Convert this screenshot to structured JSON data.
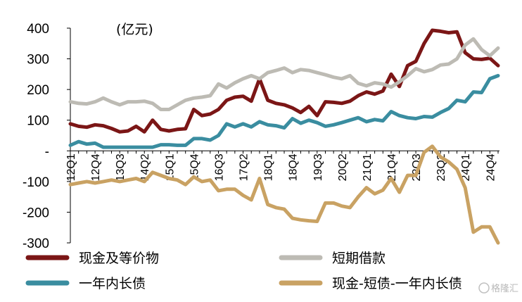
{
  "chart_data": {
    "type": "line",
    "unit_label": "(亿元)",
    "ylim": [
      -300,
      400
    ],
    "y_ticks": [
      {
        "value": 400,
        "label": "400"
      },
      {
        "value": 300,
        "label": "300"
      },
      {
        "value": 200,
        "label": "200"
      },
      {
        "value": 100,
        "label": "100"
      },
      {
        "value": 0,
        "label": "-"
      },
      {
        "value": -100,
        "label": "-100"
      },
      {
        "value": -200,
        "label": "-200"
      },
      {
        "value": -300,
        "label": "-300"
      }
    ],
    "grid": false,
    "legend_position": "bottom",
    "x": [
      "12Q1",
      "12Q2",
      "12Q3",
      "12Q4",
      "13Q1",
      "13Q2",
      "13Q3",
      "13Q4",
      "14Q1",
      "14Q2",
      "14Q3",
      "14Q4",
      "15Q1",
      "15Q2",
      "15Q3",
      "15Q4",
      "16Q1",
      "16Q2",
      "16Q3",
      "16Q4",
      "17Q1",
      "17Q2",
      "17Q3",
      "17Q4",
      "18Q1",
      "18Q2",
      "18Q3",
      "18Q4",
      "19Q1",
      "19Q2",
      "19Q3",
      "19Q4",
      "20Q1",
      "20Q2",
      "20Q3",
      "20Q4",
      "21Q1",
      "21Q2",
      "21Q3",
      "21Q4",
      "22Q1",
      "22Q2",
      "22Q3",
      "22Q4",
      "23Q1",
      "23Q2",
      "23Q3",
      "23Q4",
      "24Q1",
      "24Q2",
      "24Q3",
      "24Q4",
      "25Q1"
    ],
    "x_tick_labels": [
      "12Q1",
      "12Q4",
      "13Q3",
      "14Q2",
      "15Q1",
      "15Q4",
      "16Q3",
      "17Q2",
      "18Q1",
      "18Q4",
      "19Q3",
      "20Q2",
      "21Q1",
      "21Q4",
      "22Q3",
      "23Q2",
      "24Q1",
      "24Q4"
    ],
    "series": [
      {
        "name": "现金及等价物",
        "color": "#7b1616",
        "values": [
          88,
          80,
          77,
          85,
          82,
          73,
          62,
          65,
          80,
          62,
          100,
          70,
          65,
          70,
          72,
          135,
          115,
          120,
          135,
          165,
          175,
          178,
          162,
          235,
          165,
          155,
          150,
          140,
          125,
          145,
          115,
          160,
          158,
          155,
          162,
          180,
          192,
          185,
          195,
          250,
          210,
          278,
          292,
          350,
          393,
          390,
          385,
          388,
          320,
          300,
          298,
          302,
          278
        ]
      },
      {
        "name": "短期借款",
        "color": "#bdbbb4",
        "values": [
          160,
          155,
          153,
          160,
          172,
          160,
          150,
          160,
          160,
          162,
          155,
          135,
          135,
          150,
          165,
          172,
          175,
          180,
          218,
          205,
          222,
          235,
          245,
          235,
          255,
          262,
          270,
          255,
          265,
          262,
          255,
          248,
          240,
          235,
          245,
          220,
          212,
          222,
          218,
          208,
          225,
          245,
          268,
          258,
          265,
          280,
          283,
          300,
          345,
          365,
          330,
          310,
          335
        ]
      },
      {
        "name": "一年内长债",
        "color": "#3a8da0",
        "values": [
          18,
          30,
          22,
          25,
          12,
          12,
          12,
          12,
          12,
          12,
          12,
          20,
          20,
          18,
          18,
          40,
          40,
          35,
          50,
          88,
          78,
          88,
          78,
          95,
          85,
          82,
          75,
          105,
          90,
          100,
          92,
          80,
          85,
          92,
          100,
          108,
          95,
          102,
          98,
          128,
          115,
          108,
          105,
          112,
          110,
          125,
          138,
          165,
          160,
          192,
          190,
          235,
          245
        ]
      },
      {
        "name": "现金-短债-一年内长债",
        "color": "#c9a263",
        "values": [
          -110,
          -105,
          -100,
          -105,
          -100,
          -95,
          -100,
          -95,
          -90,
          -100,
          -70,
          -80,
          -90,
          -95,
          -110,
          -85,
          -100,
          -95,
          -130,
          -125,
          -125,
          -145,
          -160,
          -90,
          -175,
          -185,
          -190,
          -220,
          -225,
          -228,
          -230,
          -170,
          -170,
          -180,
          -185,
          -150,
          -120,
          -140,
          -128,
          -90,
          -135,
          -80,
          -80,
          -5,
          15,
          -20,
          -36,
          -60,
          -120,
          -265,
          -248,
          -248,
          -300
        ]
      }
    ]
  },
  "watermark": "格隆汇"
}
